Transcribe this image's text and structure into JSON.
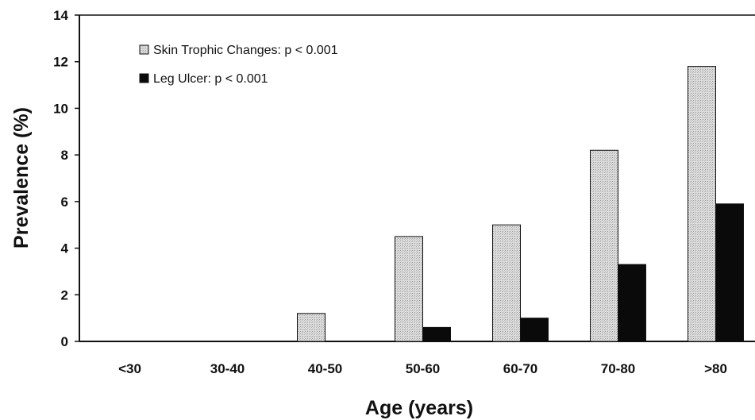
{
  "chart_data": {
    "type": "bar",
    "xlabel": "Age (years)",
    "ylabel": "Prevalence (%)",
    "ylim": [
      0,
      14
    ],
    "yticks": [
      "0",
      "2",
      "4",
      "6",
      "8",
      "10",
      "12",
      "14"
    ],
    "categories": [
      "<30",
      "30-40",
      "40-50",
      "50-60",
      "60-70",
      "70-80",
      ">80"
    ],
    "series": [
      {
        "name": "Skin Trophic Changes: p < 0.001",
        "values": [
          0,
          0,
          1.2,
          4.5,
          5.0,
          8.2,
          11.8
        ],
        "color": "#d4d4d4",
        "pattern": "stippled"
      },
      {
        "name": "Leg Ulcer: p < 0.001",
        "values": [
          0,
          0,
          0,
          0.6,
          1.0,
          3.3,
          5.9
        ],
        "color": "#0a0a0a"
      }
    ],
    "legend": "top-left",
    "grid": false
  }
}
